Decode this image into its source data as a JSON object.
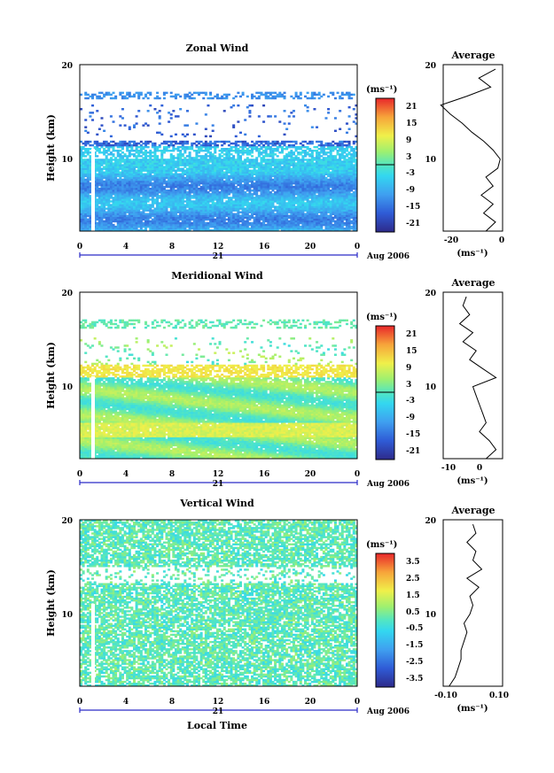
{
  "chart_data": [
    {
      "type": "heatmap",
      "title": "Zonal Wind",
      "xlabel": "",
      "ylabel": "Height (km)",
      "x_ticks": [
        "0",
        "4",
        "8",
        "12",
        "16",
        "20",
        "0"
      ],
      "y_ticks": [
        "10",
        "20"
      ],
      "xlim": [
        0,
        24
      ],
      "ylim": [
        1.5,
        20
      ],
      "day_label": "21",
      "month_label": "Aug 2006",
      "colorbar": {
        "unit": "(ms⁻¹)",
        "ticks": [
          "21",
          "15",
          "9",
          "3",
          "-3",
          "-9",
          "-15",
          "-21"
        ],
        "range": [
          -24,
          24
        ]
      },
      "average_profile": {
        "title": "Average",
        "xlabel": "(ms⁻¹)",
        "x_ticks": [
          "-20",
          "0"
        ],
        "xlim": [
          -25,
          0
        ],
        "heights": [
          1.5,
          2.5,
          3.5,
          4.5,
          5.5,
          6.5,
          7.5,
          8.5,
          9.5,
          10.5,
          11.5,
          12.5,
          13.5,
          14.5,
          15.5,
          16.5,
          17.5,
          18.5,
          19.5
        ],
        "values": [
          -7,
          -3,
          -8,
          -4,
          -9,
          -4,
          -7,
          -2,
          -1,
          -4,
          -8,
          -13,
          -17,
          -22,
          -26,
          -15,
          -5,
          -10,
          -3
        ]
      }
    },
    {
      "type": "heatmap",
      "title": "Meridional Wind",
      "xlabel": "",
      "ylabel": "Height (km)",
      "x_ticks": [
        "0",
        "4",
        "8",
        "12",
        "16",
        "20",
        "0"
      ],
      "y_ticks": [
        "10",
        "20"
      ],
      "xlim": [
        0,
        24
      ],
      "ylim": [
        1.5,
        20
      ],
      "day_label": "21",
      "month_label": "Aug 2006",
      "colorbar": {
        "unit": "(ms⁻¹)",
        "ticks": [
          "21",
          "15",
          "9",
          "3",
          "-3",
          "-9",
          "-15",
          "-21"
        ],
        "range": [
          -24,
          24
        ]
      },
      "average_profile": {
        "title": "Average",
        "xlabel": "(ms⁻¹)",
        "x_ticks": [
          "-10",
          "0"
        ],
        "xlim": [
          -12,
          6
        ],
        "heights": [
          1.5,
          2.5,
          3.5,
          4.5,
          5.5,
          6.5,
          7.5,
          8.5,
          9.5,
          10.5,
          11.5,
          12.5,
          13.5,
          14.5,
          15.5,
          16.5,
          17.5,
          18.5,
          19.5
        ],
        "values": [
          1,
          4,
          2,
          -1,
          1,
          0,
          -1,
          -2,
          -3,
          4,
          0,
          -4,
          -2,
          -6,
          -3,
          -7,
          -4,
          -6,
          -5
        ]
      }
    },
    {
      "type": "heatmap",
      "title": "Vertical Wind",
      "xlabel": "Local Time",
      "ylabel": "Height (km)",
      "x_ticks": [
        "0",
        "4",
        "8",
        "12",
        "16",
        "20",
        "0"
      ],
      "y_ticks": [
        "10",
        "20"
      ],
      "xlim": [
        0,
        24
      ],
      "ylim": [
        1.5,
        20
      ],
      "day_label": "21",
      "month_label": "Aug 2006",
      "colorbar": {
        "unit": "(ms⁻¹)",
        "ticks": [
          "3.5",
          "2.5",
          "1.5",
          "0.5",
          "-0.5",
          "-1.5",
          "-2.5",
          "-3.5"
        ],
        "range": [
          -4,
          4
        ]
      },
      "average_profile": {
        "title": "Average",
        "xlabel": "(ms⁻¹)",
        "x_ticks": [
          "-0.10",
          "0.10"
        ],
        "xlim": [
          -0.1,
          0.1
        ],
        "heights": [
          1.5,
          2.5,
          3.5,
          4.5,
          5.5,
          6.5,
          7.5,
          8.5,
          9.5,
          10.5,
          11.5,
          12.5,
          13.5,
          14.5,
          15.5,
          16.5,
          17.5,
          18.5,
          19.5
        ],
        "values": [
          -0.08,
          -0.06,
          -0.05,
          -0.04,
          -0.04,
          -0.03,
          -0.02,
          -0.03,
          -0.01,
          0.0,
          -0.01,
          0.02,
          -0.02,
          0.03,
          0.0,
          0.01,
          -0.02,
          0.01,
          0.0
        ]
      }
    }
  ]
}
